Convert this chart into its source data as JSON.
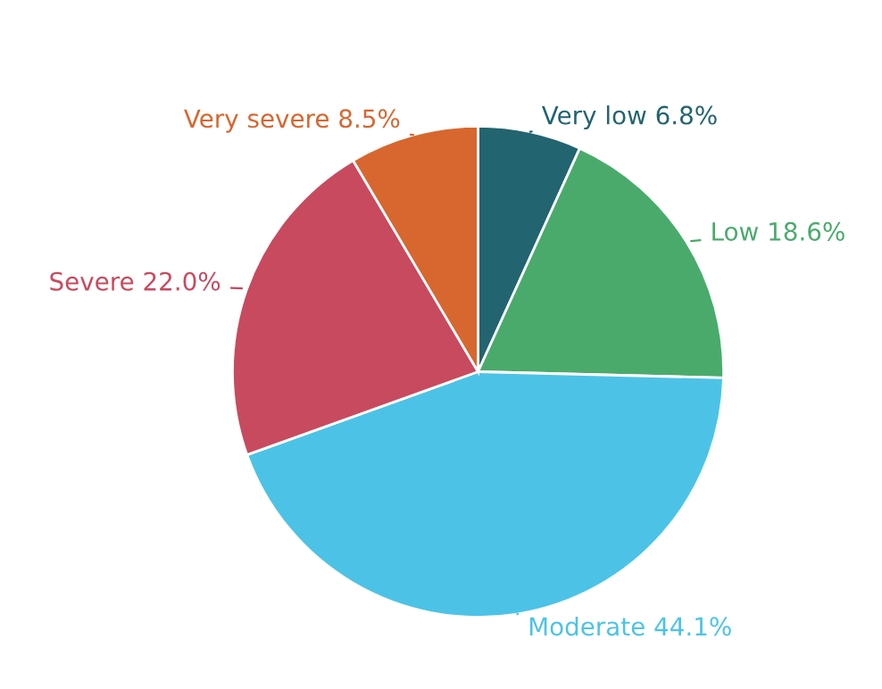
{
  "chart_data": {
    "type": "pie",
    "categories": [
      "Very low",
      "Low",
      "Moderate",
      "Severe",
      "Very severe"
    ],
    "values": [
      6.8,
      18.6,
      44.1,
      22.0,
      8.5
    ],
    "value_labels": [
      "6.8%",
      "18.6%",
      "44.1%",
      "22.0%",
      "8.5%"
    ],
    "colors": [
      "#22646f",
      "#4aaa6c",
      "#4cc3e6",
      "#c84a5f",
      "#d7672f"
    ],
    "legend": false
  }
}
